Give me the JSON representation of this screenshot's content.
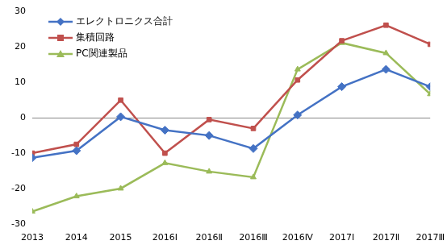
{
  "chart_data": {
    "type": "line",
    "categories": [
      "2013",
      "2014",
      "2015",
      "2016Ⅰ",
      "2016Ⅱ",
      "2016Ⅲ",
      "2016Ⅳ",
      "2017Ⅰ",
      "2017Ⅱ",
      "2017Ⅲ"
    ],
    "series": [
      {
        "name": "エレクトロニクス合計",
        "color": "#4472c4",
        "marker": "diamond",
        "values": [
          -11.3,
          -9.3,
          0.3,
          -3.5,
          -5.0,
          -8.7,
          0.8,
          8.8,
          13.7,
          8.8
        ]
      },
      {
        "name": "集積回路",
        "color": "#c0504d",
        "marker": "square",
        "values": [
          -10.0,
          -7.5,
          5.0,
          -10.0,
          -0.5,
          -3.0,
          10.7,
          21.8,
          26.2,
          20.8
        ]
      },
      {
        "name": "PC関連製品",
        "color": "#9bbb59",
        "marker": "triangle",
        "values": [
          -26.5,
          -22.2,
          -20.0,
          -12.8,
          -15.2,
          -16.8,
          13.7,
          21.2,
          18.3,
          6.7
        ]
      }
    ],
    "ylim": [
      -30,
      30
    ],
    "yticks": [
      -30,
      -20,
      -10,
      0,
      10,
      20,
      30
    ],
    "grid": false,
    "legend": "upper left"
  }
}
